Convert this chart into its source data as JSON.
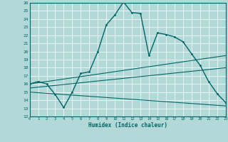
{
  "xlabel": "Humidex (Indice chaleur)",
  "bg_color": "#b2d8d8",
  "grid_color": "#ffffff",
  "line_color": "#006666",
  "ylim": [
    12,
    26
  ],
  "xlim": [
    0,
    23
  ],
  "yticks": [
    12,
    13,
    14,
    15,
    16,
    17,
    18,
    19,
    20,
    21,
    22,
    23,
    24,
    25,
    26
  ],
  "xticks": [
    0,
    1,
    2,
    3,
    4,
    5,
    6,
    7,
    8,
    9,
    10,
    11,
    12,
    13,
    14,
    15,
    16,
    17,
    18,
    19,
    20,
    21,
    22,
    23
  ],
  "line1_x": [
    0,
    1,
    2,
    3,
    4,
    5,
    6,
    7,
    8,
    9,
    10,
    11,
    12,
    13,
    14,
    15,
    16,
    17,
    18,
    19,
    20,
    21,
    22,
    23
  ],
  "line1_y": [
    16.0,
    16.3,
    16.0,
    14.7,
    13.1,
    15.0,
    17.3,
    17.5,
    20.0,
    23.3,
    24.5,
    26.1,
    24.8,
    24.7,
    19.5,
    22.3,
    22.1,
    21.8,
    21.2,
    19.7,
    18.3,
    16.3,
    14.8,
    13.7
  ],
  "line2_x": [
    0,
    23
  ],
  "line2_y": [
    16.0,
    19.5
  ],
  "line3_x": [
    0,
    23
  ],
  "line3_y": [
    15.5,
    18.0
  ],
  "line4_x": [
    0,
    23
  ],
  "line4_y": [
    15.0,
    13.3
  ]
}
